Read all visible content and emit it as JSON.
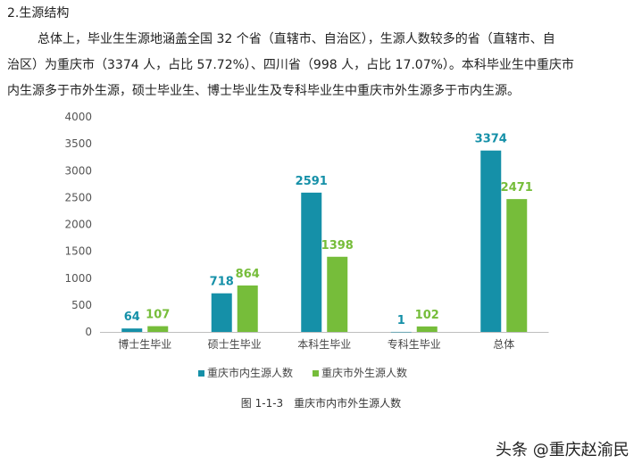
{
  "heading": "2.生源结构",
  "paragraph_lines": [
    "总体上，毕业生生源地涵盖全国 32 个省（直辖市、自治区），生源人数较多的省（直辖市、自",
    "治区）为重庆市（3374 人，占比 57.72%）、四川省（998 人，占比 17.07%）。本科毕业生中重庆市",
    "内生源多于市外生源，硕士毕业生、博士毕业生及专科毕业生中重庆市外生源多于市内生源。"
  ],
  "caption": "图 1-1-3　重庆市内市外生源人数",
  "watermark": "头条 @重庆赵渝民",
  "chart_data": {
    "type": "bar",
    "categories": [
      "博士生毕业",
      "硕士生毕业",
      "本科生毕业",
      "专科生毕业",
      "总体"
    ],
    "series": [
      {
        "name": "重庆市内生源人数",
        "values": [
          64,
          718,
          2591,
          1,
          3374
        ],
        "color": "#1590a8"
      },
      {
        "name": "重庆市外生源人数",
        "values": [
          107,
          864,
          1398,
          102,
          2471
        ],
        "color": "#76bd3a"
      }
    ],
    "yticks": [
      "0",
      "500",
      "1000",
      "1500",
      "2000",
      "2500",
      "3000",
      "3500",
      "4000"
    ],
    "ylim": [
      0,
      4000
    ],
    "grid": false,
    "legend": "bottom"
  }
}
